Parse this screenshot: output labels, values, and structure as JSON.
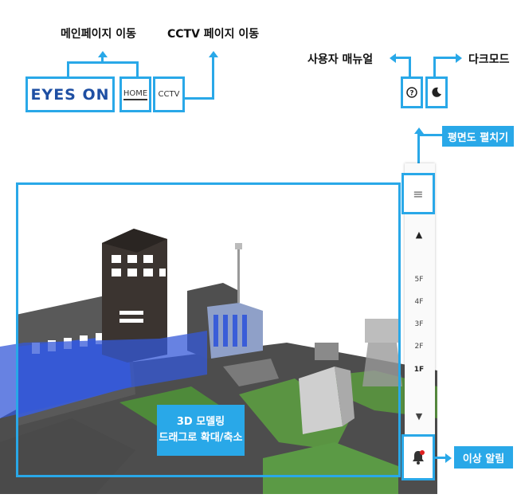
{
  "annotations": {
    "main_page": "메인페이지 이동",
    "cctv_page": "CCTV 페이지 이동",
    "user_manual": "사용자 매뉴얼",
    "dark_mode": "다크모드",
    "expand_floorplan": "평면도 펼치기",
    "alarm": "이상 알림",
    "model_hint_line1": "3D 모델링",
    "model_hint_line2": "드래그로 확대/축소"
  },
  "header": {
    "logo": "EYES ON",
    "home_label": "HOME",
    "cctv_label": "CCTV"
  },
  "floors": {
    "menu_icon": "≡",
    "up": "▲",
    "down": "▼",
    "levels": [
      "5F",
      "4F",
      "3F",
      "2F",
      "1F"
    ]
  },
  "colors": {
    "accent": "#29a8e8",
    "logo": "#1e4fa3"
  }
}
